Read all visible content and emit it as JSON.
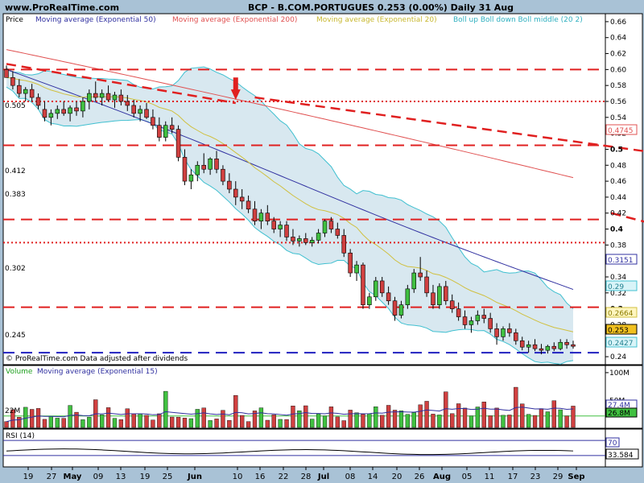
{
  "header": {
    "site": "www.ProRealTime.com",
    "title": "BCP - B.COM.PORTUGUES    0.253 (0.00%)    Daily  31 Aug"
  },
  "legend": {
    "price": "Price",
    "ema50": "Moving average (Exponential 50)",
    "ema200": "Moving average (Exponential 200)",
    "ema20": "Moving average (Exponential 20)",
    "boll": "Boll up Boll down Boll middle (20 2)"
  },
  "footer_note": "© ProRealTime.com  Data adjusted after dividends",
  "volume_legend": {
    "volume": "Volume",
    "ma": "Moving average (Exponential 15)"
  },
  "rsi_legend": "RSI (14)",
  "price_labels": {
    "top": "0.505",
    "l412": "0.412",
    "l383": "0.383",
    "l302": "0.302",
    "l245": "0.245"
  },
  "axis_badges": {
    "ema200": "0.4745",
    "ema50": "0.3151",
    "bb_up": "0.29",
    "ema20": "0.2664",
    "last": "0.253",
    "bb_down": "0.2427"
  },
  "volume_labels": {
    "left": "22M",
    "badge1": "27.4M",
    "badge2": "26.8M"
  },
  "rsi_badges": {
    "level": "70",
    "value": "33.584"
  },
  "colors": {
    "bg": "#a9c2d6",
    "panel": "#ffffff",
    "bull": "#40c040",
    "bear": "#d04040",
    "ema50": "#3030a0",
    "ema200": "#e05050",
    "ema20": "#d0c040",
    "boll": "#40c0d0",
    "resist": "#e02020",
    "support": "#2020c0"
  },
  "chart_data": {
    "type": "candlestick",
    "price_axis": {
      "min": 0.23,
      "max": 0.67,
      "ticks": [
        0.66,
        0.64,
        0.62,
        0.6,
        0.58,
        0.56,
        0.54,
        0.52,
        0.5,
        0.48,
        0.46,
        0.44,
        0.42,
        0.4,
        0.38,
        0.36,
        0.34,
        0.32,
        0.3,
        0.28,
        0.26,
        0.24
      ],
      "major": [
        0.5,
        0.4,
        0.3
      ]
    },
    "x_labels": [
      "19",
      "27",
      "May",
      "09",
      "13",
      "19",
      "25",
      "Jun",
      "10",
      "16",
      "22",
      "28",
      "Jul",
      "08",
      "14",
      "20",
      "26",
      "Aug",
      "05",
      "11",
      "17",
      "23",
      "29",
      "Sep"
    ],
    "horizontal_lines": [
      {
        "value": 0.6,
        "style": "dashed",
        "color": "resist"
      },
      {
        "value": 0.56,
        "style": "dotted",
        "color": "resist"
      },
      {
        "value": 0.505,
        "style": "dashed",
        "color": "resist"
      },
      {
        "value": 0.412,
        "style": "dashed",
        "color": "resist"
      },
      {
        "value": 0.383,
        "style": "dotted",
        "color": "resist"
      },
      {
        "value": 0.302,
        "style": "dashed",
        "color": "resist"
      },
      {
        "value": 0.245,
        "style": "dashed",
        "color": "support"
      }
    ],
    "trend_lines": [
      {
        "from": [
          0,
          0.607
        ],
        "to": [
          36,
          0.558
        ]
      },
      {
        "from": [
          39,
          0.565
        ],
        "to": [
          178,
          0.412
        ]
      },
      {
        "from": [
          95,
          0.42
        ],
        "to": [
          182,
          0.24
        ]
      }
    ],
    "candles": [
      [
        0.6,
        0.605,
        0.59,
        0.59
      ],
      [
        0.59,
        0.598,
        0.575,
        0.58
      ],
      [
        0.58,
        0.588,
        0.565,
        0.57
      ],
      [
        0.57,
        0.578,
        0.56,
        0.575
      ],
      [
        0.575,
        0.582,
        0.56,
        0.565
      ],
      [
        0.565,
        0.57,
        0.55,
        0.555
      ],
      [
        0.55,
        0.56,
        0.535,
        0.54
      ],
      [
        0.54,
        0.55,
        0.53,
        0.545
      ],
      [
        0.545,
        0.555,
        0.538,
        0.55
      ],
      [
        0.55,
        0.56,
        0.542,
        0.545
      ],
      [
        0.545,
        0.555,
        0.535,
        0.552
      ],
      [
        0.552,
        0.56,
        0.542,
        0.548
      ],
      [
        0.548,
        0.565,
        0.54,
        0.56
      ],
      [
        0.56,
        0.575,
        0.55,
        0.57
      ],
      [
        0.57,
        0.585,
        0.56,
        0.565
      ],
      [
        0.565,
        0.575,
        0.555,
        0.57
      ],
      [
        0.57,
        0.58,
        0.56,
        0.562
      ],
      [
        0.562,
        0.572,
        0.552,
        0.568
      ],
      [
        0.568,
        0.575,
        0.555,
        0.56
      ],
      [
        0.56,
        0.568,
        0.548,
        0.555
      ],
      [
        0.555,
        0.562,
        0.54,
        0.545
      ],
      [
        0.545,
        0.555,
        0.535,
        0.55
      ],
      [
        0.55,
        0.558,
        0.538,
        0.54
      ],
      [
        0.54,
        0.55,
        0.525,
        0.53
      ],
      [
        0.53,
        0.54,
        0.51,
        0.515
      ],
      [
        0.515,
        0.535,
        0.51,
        0.53
      ],
      [
        0.53,
        0.54,
        0.52,
        0.525
      ],
      [
        0.525,
        0.53,
        0.485,
        0.49
      ],
      [
        0.49,
        0.5,
        0.455,
        0.46
      ],
      [
        0.46,
        0.475,
        0.45,
        0.468
      ],
      [
        0.468,
        0.485,
        0.46,
        0.48
      ],
      [
        0.48,
        0.495,
        0.47,
        0.475
      ],
      [
        0.475,
        0.49,
        0.468,
        0.488
      ],
      [
        0.488,
        0.498,
        0.47,
        0.475
      ],
      [
        0.475,
        0.48,
        0.455,
        0.46
      ],
      [
        0.46,
        0.47,
        0.445,
        0.45
      ],
      [
        0.45,
        0.46,
        0.43,
        0.44
      ],
      [
        0.44,
        0.45,
        0.425,
        0.435
      ],
      [
        0.435,
        0.442,
        0.42,
        0.425
      ],
      [
        0.425,
        0.435,
        0.405,
        0.41
      ],
      [
        0.41,
        0.425,
        0.4,
        0.42
      ],
      [
        0.42,
        0.43,
        0.405,
        0.41
      ],
      [
        0.41,
        0.415,
        0.395,
        0.4
      ],
      [
        0.4,
        0.41,
        0.39,
        0.405
      ],
      [
        0.405,
        0.41,
        0.385,
        0.39
      ],
      [
        0.39,
        0.4,
        0.38,
        0.385
      ],
      [
        0.385,
        0.392,
        0.378,
        0.388
      ],
      [
        0.388,
        0.395,
        0.38,
        0.383
      ],
      [
        0.383,
        0.39,
        0.378,
        0.386
      ],
      [
        0.386,
        0.4,
        0.382,
        0.395
      ],
      [
        0.395,
        0.412,
        0.39,
        0.41
      ],
      [
        0.41,
        0.415,
        0.395,
        0.4
      ],
      [
        0.4,
        0.408,
        0.388,
        0.392
      ],
      [
        0.392,
        0.4,
        0.365,
        0.37
      ],
      [
        0.37,
        0.375,
        0.34,
        0.345
      ],
      [
        0.345,
        0.36,
        0.335,
        0.355
      ],
      [
        0.355,
        0.358,
        0.3,
        0.305
      ],
      [
        0.305,
        0.32,
        0.3,
        0.315
      ],
      [
        0.315,
        0.34,
        0.31,
        0.335
      ],
      [
        0.335,
        0.34,
        0.315,
        0.32
      ],
      [
        0.32,
        0.328,
        0.305,
        0.31
      ],
      [
        0.31,
        0.315,
        0.285,
        0.292
      ],
      [
        0.292,
        0.31,
        0.288,
        0.305
      ],
      [
        0.305,
        0.33,
        0.3,
        0.325
      ],
      [
        0.325,
        0.35,
        0.32,
        0.345
      ],
      [
        0.345,
        0.365,
        0.335,
        0.34
      ],
      [
        0.34,
        0.348,
        0.315,
        0.32
      ],
      [
        0.32,
        0.33,
        0.3,
        0.305
      ],
      [
        0.305,
        0.332,
        0.3,
        0.328
      ],
      [
        0.328,
        0.335,
        0.305,
        0.31
      ],
      [
        0.31,
        0.318,
        0.295,
        0.3
      ],
      [
        0.3,
        0.308,
        0.285,
        0.29
      ],
      [
        0.29,
        0.298,
        0.275,
        0.28
      ],
      [
        0.28,
        0.29,
        0.27,
        0.285
      ],
      [
        0.285,
        0.298,
        0.28,
        0.292
      ],
      [
        0.292,
        0.3,
        0.282,
        0.288
      ],
      [
        0.288,
        0.295,
        0.27,
        0.275
      ],
      [
        0.275,
        0.282,
        0.255,
        0.265
      ],
      [
        0.265,
        0.278,
        0.26,
        0.275
      ],
      [
        0.275,
        0.282,
        0.265,
        0.27
      ],
      [
        0.27,
        0.275,
        0.255,
        0.26
      ],
      [
        0.26,
        0.265,
        0.248,
        0.252
      ],
      [
        0.252,
        0.26,
        0.245,
        0.255
      ],
      [
        0.255,
        0.262,
        0.247,
        0.25
      ],
      [
        0.25,
        0.256,
        0.243,
        0.248
      ],
      [
        0.248,
        0.255,
        0.244,
        0.253
      ],
      [
        0.253,
        0.258,
        0.247,
        0.25
      ],
      [
        0.25,
        0.262,
        0.248,
        0.258
      ],
      [
        0.258,
        0.262,
        0.25,
        0.255
      ],
      [
        0.255,
        0.26,
        0.25,
        0.253
      ]
    ],
    "volume_axis": {
      "max": 110,
      "unit": "M",
      "ticks": [
        {
          "v": 100,
          "label": "100M"
        },
        {
          "v": 50,
          "label": "50M"
        }
      ]
    },
    "rsi": {
      "min": 0,
      "max": 100,
      "levels": [
        70,
        30
      ],
      "last": 33.584
    }
  }
}
